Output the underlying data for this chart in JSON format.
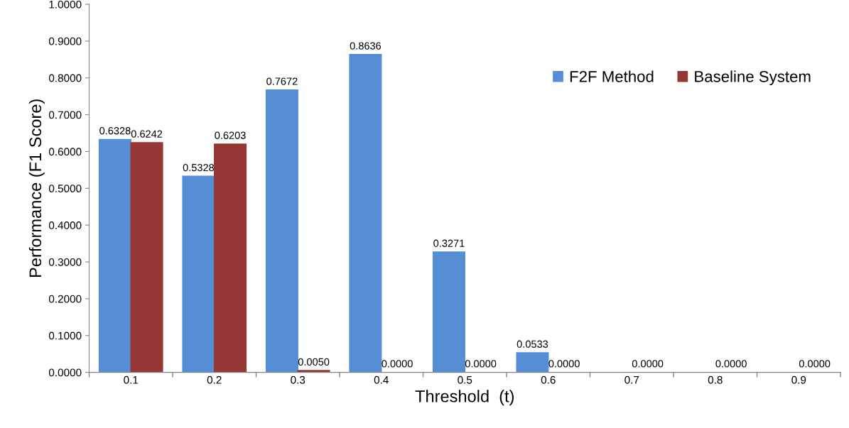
{
  "chart_data": {
    "type": "bar",
    "xlabel": "Threshold  (t)",
    "ylabel": "Performance (F1 Score)",
    "categories": [
      "0.1",
      "0.2",
      "0.3",
      "0.4",
      "0.5",
      "0.6",
      "0.7",
      "0.8",
      "0.9"
    ],
    "series": [
      {
        "name": "F2F Method",
        "color": "#558ed5",
        "values": [
          0.6328,
          0.5328,
          0.7672,
          0.8636,
          0.3271,
          0.0533,
          0,
          0,
          0
        ],
        "value_labels": [
          "0.6328",
          "0.5328",
          "0.7672",
          "0.8636",
          "0.3271",
          "0.0533",
          null,
          null,
          null
        ]
      },
      {
        "name": "Baseline System",
        "color": "#953735",
        "values": [
          0.6242,
          0.6203,
          0.005,
          0,
          0,
          0,
          0,
          0,
          0
        ],
        "value_labels": [
          "0.6242",
          "0.6203",
          "0.0050",
          "0.0000",
          "0.0000",
          "0.0000",
          "0.0000",
          "0.0000",
          "0.0000"
        ]
      }
    ],
    "ylim": [
      0,
      1
    ],
    "yticks": [
      {
        "value": 0,
        "label": "0.0000"
      },
      {
        "value": 0.1,
        "label": "0.1000"
      },
      {
        "value": 0.2,
        "label": "0.2000"
      },
      {
        "value": 0.3,
        "label": "0.3000"
      },
      {
        "value": 0.4,
        "label": "0.4000"
      },
      {
        "value": 0.5,
        "label": "0.5000"
      },
      {
        "value": 0.6,
        "label": "0.6000"
      },
      {
        "value": 0.7,
        "label": "0.7000"
      },
      {
        "value": 0.8,
        "label": "0.8000"
      },
      {
        "value": 0.9,
        "label": "0.9000"
      },
      {
        "value": 1,
        "label": "1.0000"
      }
    ],
    "grid": false,
    "legend": "right"
  }
}
